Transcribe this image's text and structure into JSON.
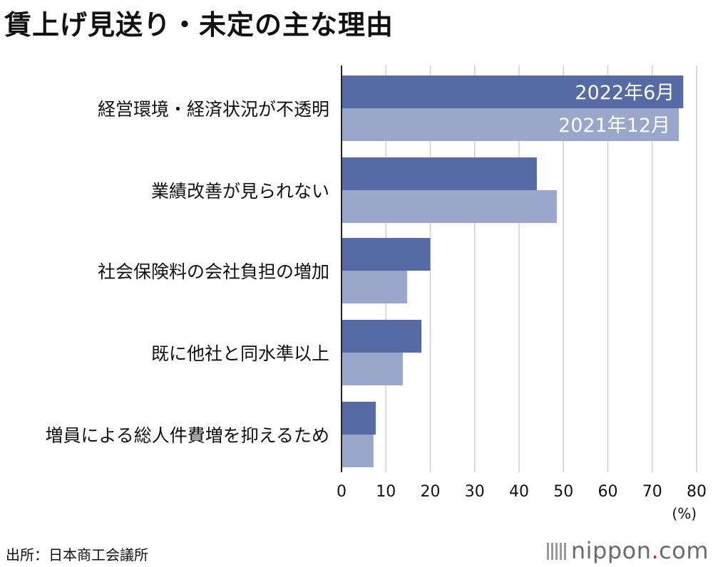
{
  "title": "賃上げ見送り・未定の主な理由",
  "source": "出所：日本商工会議所",
  "logo": {
    "text_pre": "nippon",
    "dot": ".",
    "text_post": "com"
  },
  "colors": {
    "series1": "#566aa5",
    "series2": "#9aa6ca",
    "grid": "#cfcfcf",
    "axis": "#222222"
  },
  "chart_data": {
    "type": "bar",
    "orientation": "horizontal",
    "categories": [
      "経営環境・経済状況が不透明",
      "業績改善が見られない",
      "社会保険料の会社負担の増加",
      "既に他社と同水準以上",
      "増員による総人件費増を抑えるため"
    ],
    "series": [
      {
        "name": "2022年6月",
        "values": [
          77.0,
          44.0,
          20.0,
          18.0,
          7.7
        ]
      },
      {
        "name": "2021年12月",
        "values": [
          76.0,
          48.5,
          14.8,
          13.8,
          7.2
        ]
      }
    ],
    "xlim": [
      0,
      80
    ],
    "xticks": [
      0,
      10,
      20,
      30,
      40,
      50,
      60,
      70,
      80
    ],
    "xunit": "(%)",
    "grid": true,
    "legend_placement": "inside first bars"
  }
}
